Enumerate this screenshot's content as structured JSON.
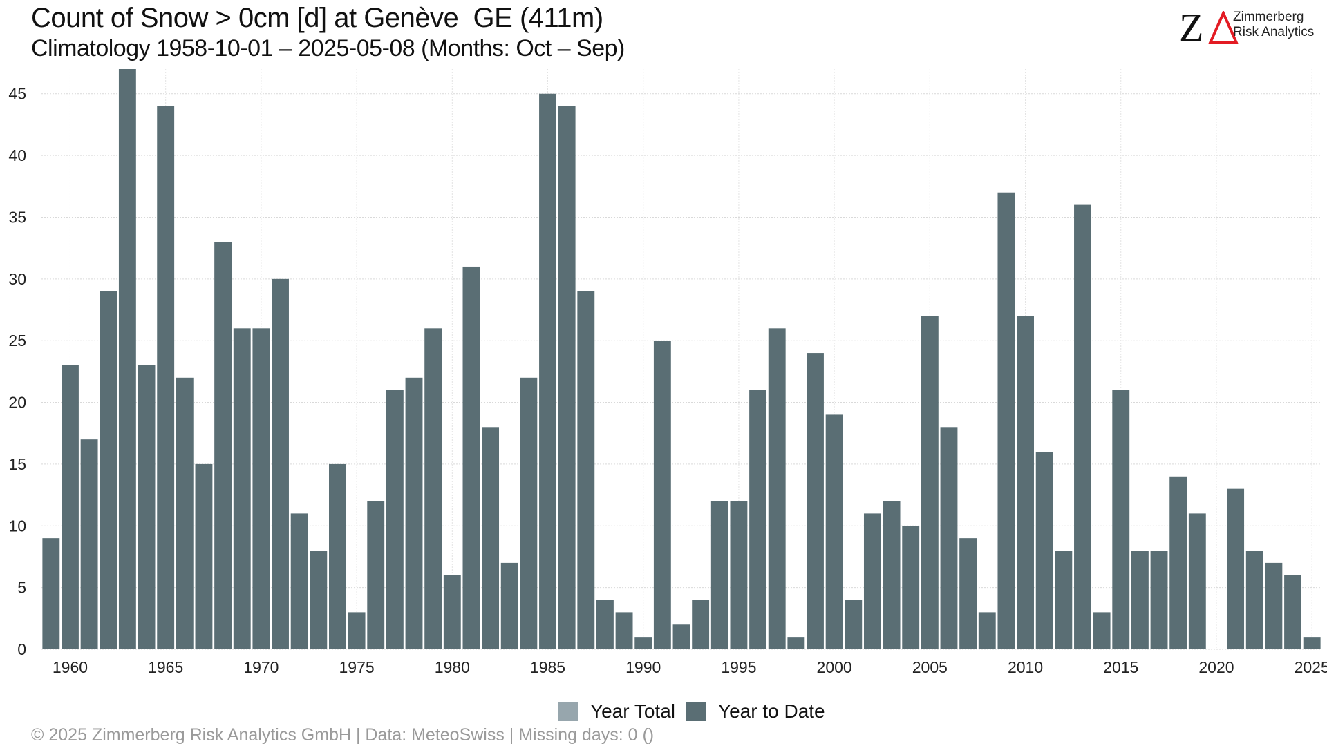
{
  "header": {
    "title": "Count of Snow > 0cm [d] at Genève  GE (411m)",
    "subtitle": "Climatology 1958-10-01 – 2025-05-08 (Months: Oct – Sep)"
  },
  "logo": {
    "mark": "Z",
    "triangle": "triangle-icon",
    "line1": "Zimmerberg",
    "line2": "Risk Analytics",
    "triangle_color": "#e31b23"
  },
  "legend": {
    "items": [
      {
        "label": "Year Total",
        "color": "#97a6ad"
      },
      {
        "label": "Year to Date",
        "color": "#5a6e74"
      }
    ]
  },
  "footer": {
    "text": "©  2025 Zimmerberg Risk Analytics GmbH | Data: MeteoSwiss | Missing days: 0 ()"
  },
  "chart_data": {
    "type": "bar",
    "title": "Count of Snow > 0cm [d] at Genève  GE (411m)",
    "xlabel": "",
    "ylabel": "",
    "ylim": [
      0,
      47
    ],
    "yticks": [
      0,
      5,
      10,
      15,
      20,
      25,
      30,
      35,
      40,
      45
    ],
    "xlim": [
      1958.5,
      2025.5
    ],
    "xticks": [
      1960,
      1965,
      1970,
      1975,
      1980,
      1985,
      1990,
      1995,
      2000,
      2005,
      2010,
      2015,
      2020,
      2025
    ],
    "grid": true,
    "legend_position": "bottom",
    "bar_color": "#5a6e74",
    "series": [
      {
        "name": "Year to Date",
        "x": [
          1959,
          1960,
          1961,
          1962,
          1963,
          1964,
          1965,
          1966,
          1967,
          1968,
          1969,
          1970,
          1971,
          1972,
          1973,
          1974,
          1975,
          1976,
          1977,
          1978,
          1979,
          1980,
          1981,
          1982,
          1983,
          1984,
          1985,
          1986,
          1987,
          1988,
          1989,
          1990,
          1991,
          1992,
          1993,
          1994,
          1995,
          1996,
          1997,
          1998,
          1999,
          2000,
          2001,
          2002,
          2003,
          2004,
          2005,
          2006,
          2007,
          2008,
          2009,
          2010,
          2011,
          2012,
          2013,
          2014,
          2015,
          2016,
          2017,
          2018,
          2019,
          2020,
          2021,
          2022,
          2023,
          2024,
          2025
        ],
        "values": [
          9,
          23,
          17,
          29,
          47,
          23,
          44,
          22,
          15,
          33,
          26,
          26,
          30,
          11,
          8,
          15,
          3,
          12,
          21,
          22,
          26,
          6,
          31,
          18,
          7,
          22,
          45,
          44,
          29,
          4,
          3,
          1,
          25,
          2,
          4,
          12,
          12,
          21,
          26,
          1,
          24,
          19,
          4,
          11,
          12,
          10,
          27,
          18,
          9,
          3,
          37,
          27,
          16,
          8,
          36,
          3,
          21,
          8,
          8,
          14,
          11,
          0,
          13,
          8,
          7,
          6,
          1
        ]
      }
    ]
  }
}
